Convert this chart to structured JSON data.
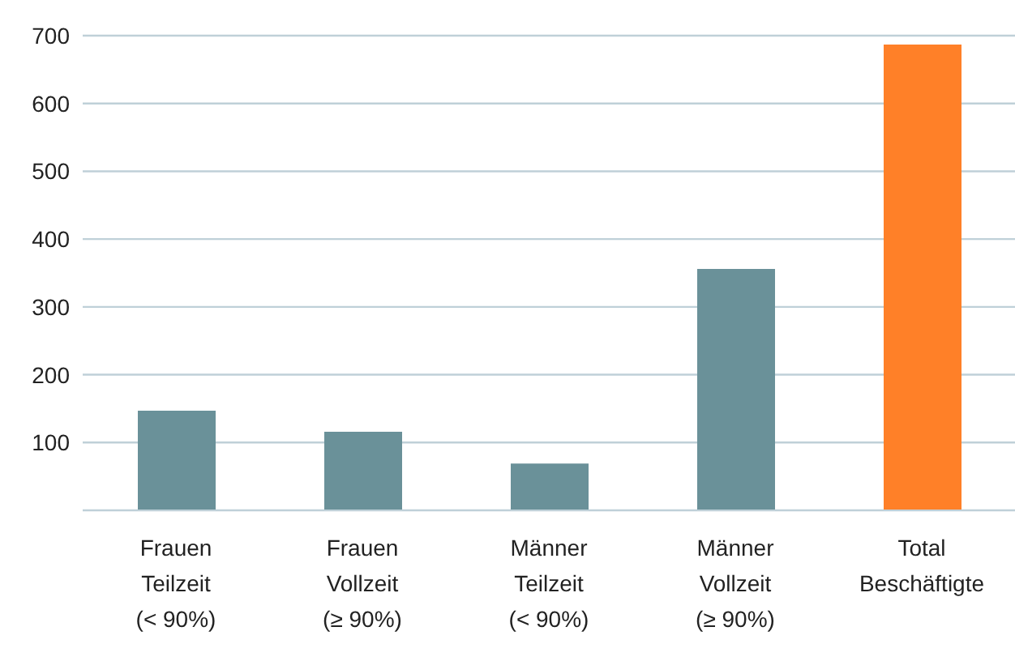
{
  "chart_data": {
    "type": "bar",
    "categories": [
      "Frauen\nTeilzeit\n(< 90%)",
      "Frauen\nVollzeit\n(≥ 90%)",
      "Männer\nTeilzeit\n(< 90%)",
      "Männer\nVollzeit\n(≥ 90%)",
      "Total\nBeschäftigte"
    ],
    "values": [
      147,
      116,
      69,
      356,
      687
    ],
    "colors": [
      "#6a9199",
      "#6a9199",
      "#6a9199",
      "#6a9199",
      "#ff8028"
    ],
    "ylim": [
      0,
      700
    ],
    "yticks": [
      {
        "value": 0,
        "label": null
      },
      100,
      200,
      300,
      400,
      500,
      600,
      700
    ],
    "grid": "y"
  }
}
